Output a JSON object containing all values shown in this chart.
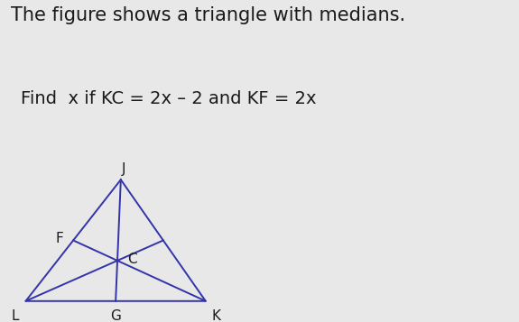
{
  "title_line1": "The figure shows a triangle with medians.",
  "problem_text": "Find  x if KC = 2x – 2 and KF = 2x",
  "bg_color": "#e8e8e8",
  "triangle_color": "#3333aa",
  "text_color": "#1a1a1a",
  "vertices": {
    "L": [
      0.05,
      0.05
    ],
    "K": [
      0.75,
      0.05
    ],
    "J": [
      0.42,
      0.92
    ]
  },
  "midpoints": {
    "G": [
      0.4,
      0.05
    ],
    "F": [
      0.235,
      0.485
    ],
    "M": [
      0.585,
      0.485
    ]
  },
  "centroid": [
    0.407,
    0.35
  ],
  "title_fontsize": 15,
  "problem_fontsize": 14,
  "label_fontsize": 11
}
